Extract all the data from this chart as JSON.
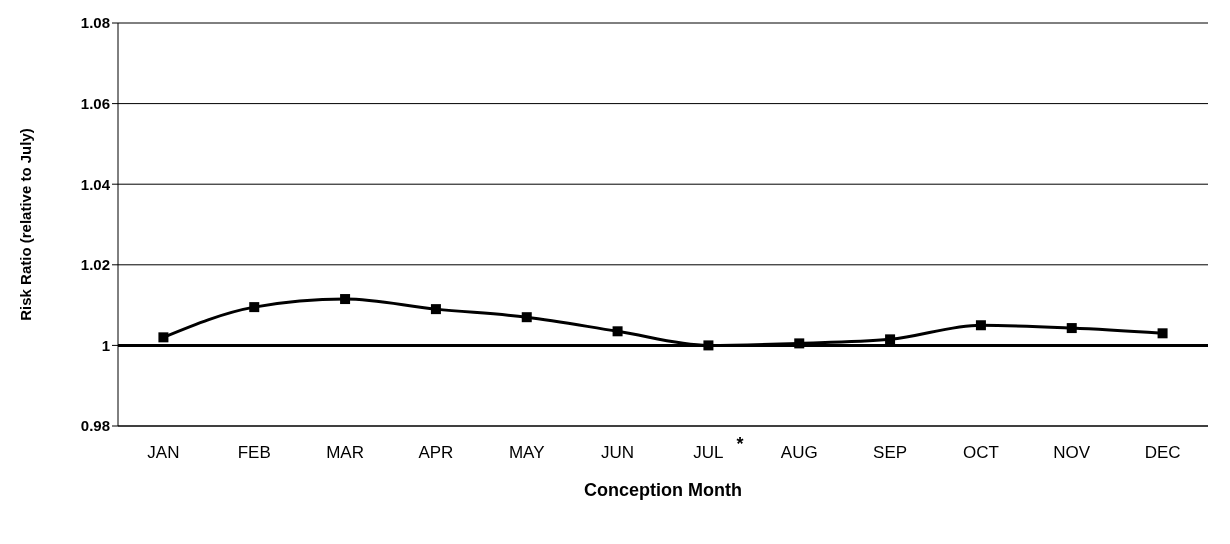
{
  "chart_data": {
    "type": "line",
    "xlabel": "Conception Month",
    "ylabel": "Risk Ratio (relative to July)",
    "categories": [
      "JAN",
      "FEB",
      "MAR",
      "APR",
      "MAY",
      "JUN",
      "JUL",
      "AUG",
      "SEP",
      "OCT",
      "NOV",
      "DEC"
    ],
    "series": [
      {
        "color": "#000000",
        "values": [
          1.002,
          1.0095,
          1.0115,
          1.009,
          1.007,
          1.0035,
          1.0,
          1.0005,
          1.0015,
          1.005,
          1.0043,
          1.003
        ]
      }
    ],
    "ylim": [
      0.98,
      1.08
    ],
    "yticks": [
      0.98,
      1,
      1.02,
      1.04,
      1.06,
      1.08
    ],
    "ref_lines": [
      {
        "axis": "y",
        "value": 1,
        "color": "#000000"
      }
    ],
    "annotations": [
      "*"
    ],
    "grid": "y",
    "legend": false,
    "marker": "square",
    "line_style": "solid"
  }
}
